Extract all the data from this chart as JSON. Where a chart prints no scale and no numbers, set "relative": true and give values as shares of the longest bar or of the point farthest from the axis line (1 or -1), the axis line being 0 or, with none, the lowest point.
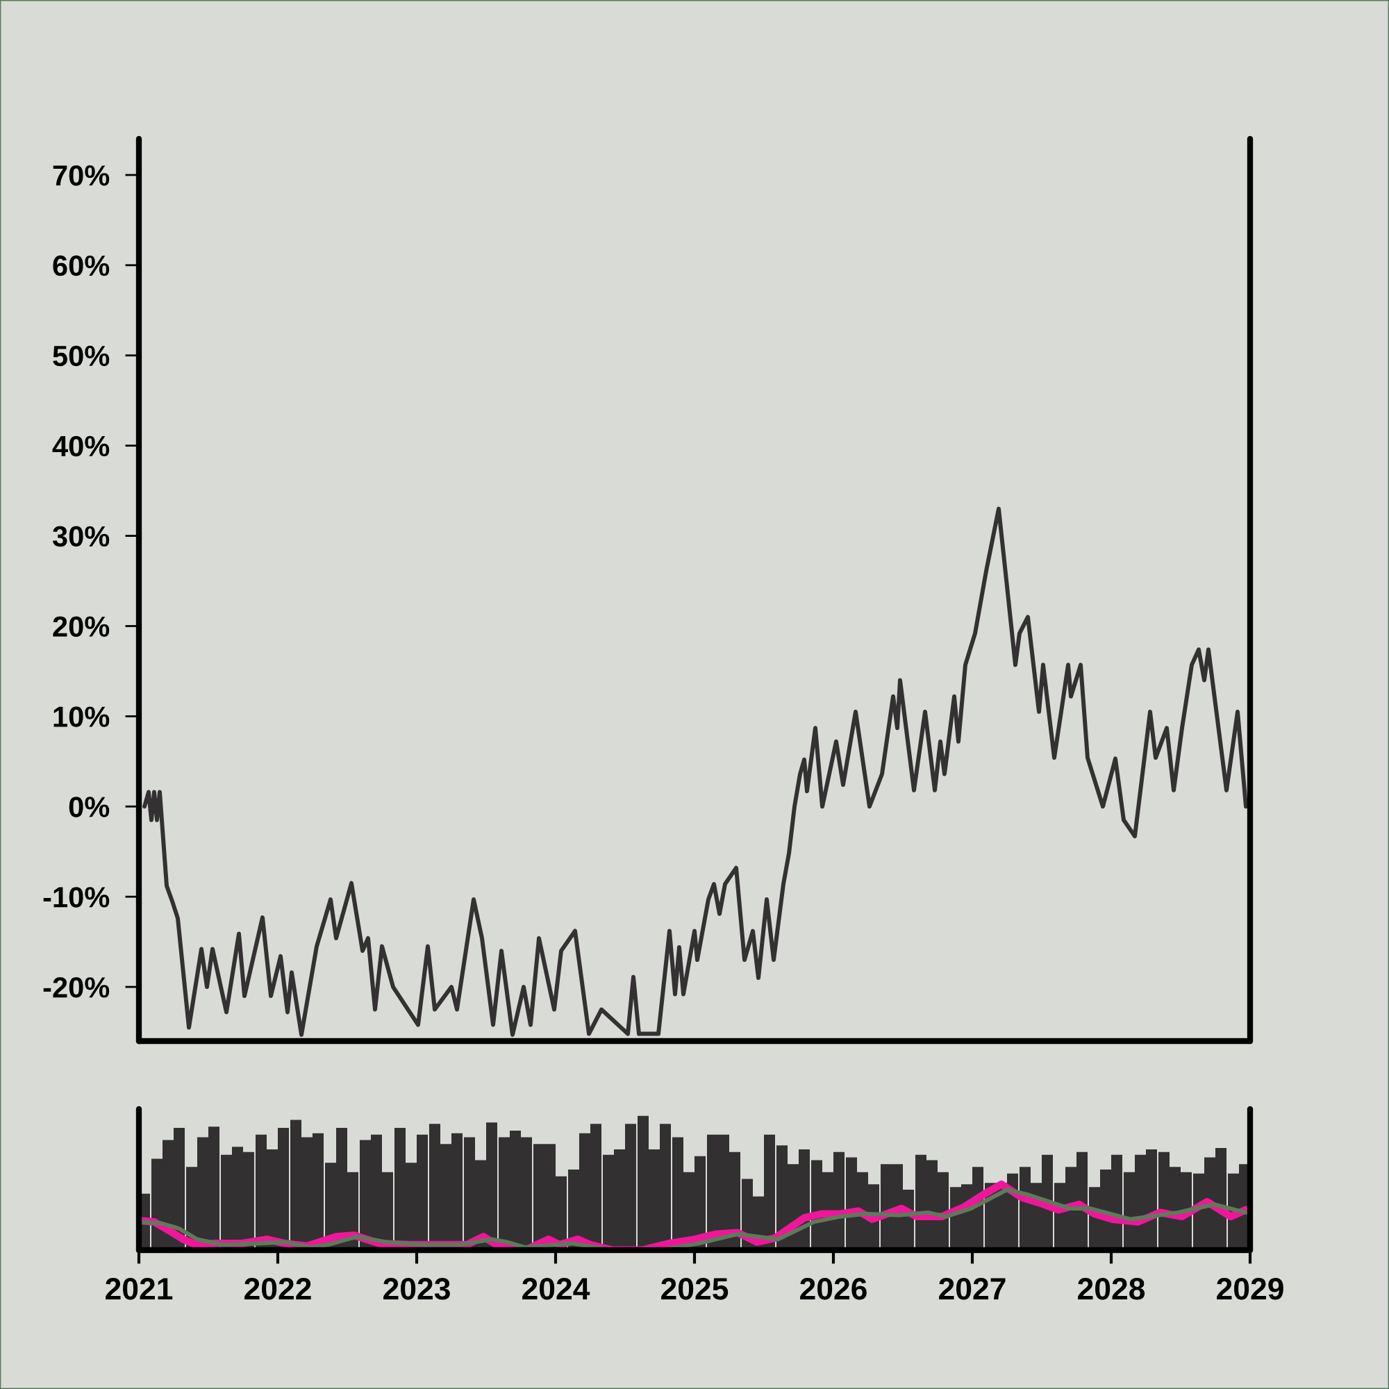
{
  "chart_data": [
    {
      "type": "line",
      "x": [
        2021.04,
        2021.07,
        2021.09,
        2021.11,
        2021.13,
        2021.15,
        2021.2,
        2021.24,
        2021.28,
        2021.36,
        2021.45,
        2021.49,
        2021.53,
        2021.63,
        2021.72,
        2021.76,
        2021.89,
        2021.95,
        2022.02,
        2022.07,
        2022.1,
        2022.17,
        2022.28,
        2022.38,
        2022.42,
        2022.53,
        2022.61,
        2022.65,
        2022.7,
        2022.75,
        2022.83,
        2023.01,
        2023.08,
        2023.13,
        2023.25,
        2023.29,
        2023.41,
        2023.47,
        2023.55,
        2023.61,
        2023.69,
        2023.77,
        2023.82,
        2023.88,
        2023.99,
        2024.04,
        2024.14,
        2024.24,
        2024.33,
        2024.52,
        2024.56,
        2024.6,
        2024.74,
        2024.82,
        2024.86,
        2024.89,
        2024.92,
        2025.0,
        2025.02,
        2025.1,
        2025.14,
        2025.18,
        2025.22,
        2025.3,
        2025.36,
        2025.42,
        2025.46,
        2025.52,
        2025.57,
        2025.64,
        2025.68,
        2025.72,
        2025.76,
        2025.79,
        2025.81,
        2025.87,
        2025.92,
        2026.02,
        2026.07,
        2026.16,
        2026.26,
        2026.35,
        2026.43,
        2026.46,
        2026.48,
        2026.58,
        2026.66,
        2026.73,
        2026.77,
        2026.8,
        2026.87,
        2026.9,
        2026.95,
        2027.02,
        2027.1,
        2027.19,
        2027.25,
        2027.31,
        2027.34,
        2027.4,
        2027.48,
        2027.51,
        2027.59,
        2027.64,
        2027.69,
        2027.71,
        2027.78,
        2027.83,
        2027.94,
        2028.03,
        2028.09,
        2028.17,
        2028.28,
        2028.32,
        2028.4,
        2028.45,
        2028.51,
        2028.58,
        2028.63,
        2028.67,
        2028.7,
        2028.8,
        2028.83,
        2028.91,
        2028.97
      ],
      "series": [
        {
          "color": "#333132",
          "values": [
            0,
            1.6,
            -1.5,
            1.6,
            -1.5,
            1.6,
            -8.8,
            -10.5,
            -12.4,
            -24.5,
            -15.8,
            -20,
            -15.8,
            -22.8,
            -14.1,
            -21,
            -12.3,
            -21,
            -16.6,
            -22.8,
            -18.4,
            -25.3,
            -15.5,
            -10.3,
            -14.6,
            -8.5,
            -16,
            -14.6,
            -22.5,
            -15.5,
            -20,
            -24.2,
            -15.5,
            -22.5,
            -20,
            -22.5,
            -10.3,
            -14.6,
            -24.2,
            -16,
            -25.3,
            -20,
            -24.2,
            -14.6,
            -22.5,
            -16,
            -13.8,
            -25.2,
            -22.5,
            -25.2,
            -18.9,
            -25.2,
            -25.2,
            -13.8,
            -20.8,
            -15.6,
            -20.8,
            -13.8,
            -17,
            -10.3,
            -8.6,
            -11.9,
            -8.6,
            -6.8,
            -17,
            -13.8,
            -19,
            -10.3,
            -17,
            -8.6,
            -5.2,
            0,
            3.6,
            5.2,
            1.7,
            8.7,
            0,
            7.2,
            2.4,
            10.5,
            0,
            3.6,
            12.2,
            8.7,
            14,
            1.8,
            10.5,
            1.8,
            7.2,
            3.6,
            12.2,
            7.2,
            15.7,
            19.2,
            26.1,
            33,
            24.4,
            15.7,
            19.2,
            21,
            10.5,
            15.7,
            5.4,
            10.5,
            15.7,
            12.2,
            15.7,
            5.4,
            0,
            5.3,
            -1.5,
            -3.3,
            10.5,
            5.4,
            8.7,
            1.8,
            8.7,
            15.7,
            17.4,
            14,
            17.4,
            5.4,
            1.8,
            10.5,
            0
          ]
        }
      ],
      "xlim": [
        2021,
        2029
      ],
      "ylim": [
        -26,
        74
      ],
      "yticks": [
        {
          "value": -20,
          "label": "-20%"
        },
        {
          "value": -10,
          "label": "-10%"
        },
        {
          "value": 0,
          "label": "0%"
        },
        {
          "value": 10,
          "label": "10%"
        },
        {
          "value": 20,
          "label": "20%"
        },
        {
          "value": 30,
          "label": "30%"
        },
        {
          "value": 40,
          "label": "40%"
        },
        {
          "value": 50,
          "label": "50%"
        },
        {
          "value": 60,
          "label": "60%"
        },
        {
          "value": 70,
          "label": "70%"
        }
      ],
      "tick_labels": "y",
      "grid": false,
      "legend": false
    },
    {
      "type": "bar",
      "relative": true,
      "xlim": [
        2021,
        2029
      ],
      "xticks": [
        2021,
        2022,
        2023,
        2024,
        2025,
        2026,
        2027,
        2028,
        2029
      ],
      "tick_labels": "x",
      "grid": false,
      "legend": false,
      "x": [
        2021.04,
        2021.13,
        2021.21,
        2021.29,
        2021.38,
        2021.46,
        2021.54,
        2021.63,
        2021.71,
        2021.79,
        2021.88,
        2021.96,
        2022.04,
        2022.13,
        2022.21,
        2022.29,
        2022.38,
        2022.46,
        2022.54,
        2022.63,
        2022.71,
        2022.79,
        2022.88,
        2022.96,
        2023.04,
        2023.13,
        2023.21,
        2023.29,
        2023.38,
        2023.46,
        2023.54,
        2023.63,
        2023.71,
        2023.79,
        2023.88,
        2023.96,
        2024.04,
        2024.13,
        2024.21,
        2024.29,
        2024.38,
        2024.46,
        2024.54,
        2024.63,
        2024.71,
        2024.79,
        2024.88,
        2024.96,
        2025.04,
        2025.13,
        2025.21,
        2025.29,
        2025.38,
        2025.46,
        2025.54,
        2025.63,
        2025.71,
        2025.79,
        2025.88,
        2025.96,
        2026.04,
        2026.13,
        2026.21,
        2026.29,
        2026.38,
        2026.46,
        2026.54,
        2026.63,
        2026.71,
        2026.79,
        2026.88,
        2026.96,
        2027.04,
        2027.13,
        2027.21,
        2027.29,
        2027.38,
        2027.46,
        2027.54,
        2027.63,
        2027.71,
        2027.79,
        2027.88,
        2027.96,
        2028.04,
        2028.13,
        2028.21,
        2028.29,
        2028.38,
        2028.46,
        2028.54,
        2028.63,
        2028.71,
        2028.79,
        2028.88,
        2028.96
      ],
      "series": [
        {
          "color": "#323031",
          "values": [
            0.42,
            0.68,
            0.82,
            0.91,
            0.62,
            0.84,
            0.92,
            0.71,
            0.77,
            0.73,
            0.86,
            0.75,
            0.91,
            0.97,
            0.84,
            0.87,
            0.65,
            0.91,
            0.58,
            0.82,
            0.86,
            0.58,
            0.91,
            0.65,
            0.86,
            0.94,
            0.79,
            0.87,
            0.84,
            0.67,
            0.95,
            0.84,
            0.89,
            0.84,
            0.79,
            0.79,
            0.55,
            0.6,
            0.87,
            0.94,
            0.71,
            0.75,
            0.94,
            1.0,
            0.75,
            0.94,
            0.84,
            0.58,
            0.7,
            0.86,
            0.86,
            0.73,
            0.53,
            0.4,
            0.86,
            0.78,
            0.64,
            0.75,
            0.67,
            0.58,
            0.73,
            0.69,
            0.58,
            0.49,
            0.64,
            0.64,
            0.45,
            0.71,
            0.67,
            0.58,
            0.47,
            0.49,
            0.62,
            0.5,
            0.5,
            0.57,
            0.62,
            0.5,
            0.71,
            0.5,
            0.62,
            0.73,
            0.47,
            0.6,
            0.71,
            0.58,
            0.71,
            0.75,
            0.73,
            0.62,
            0.58,
            0.57,
            0.69,
            0.76,
            0.57,
            0.64
          ]
        },
        {
          "type": "line",
          "color": "#f0169a",
          "x": [
            2021.0,
            2021.11,
            2021.21,
            2021.32,
            2021.41,
            2021.55,
            2021.74,
            2021.92,
            2022.05,
            2022.21,
            2022.42,
            2022.55,
            2022.73,
            2022.94,
            2023.18,
            2023.36,
            2023.48,
            2023.59,
            2023.78,
            2023.95,
            2024.03,
            2024.16,
            2024.25,
            2024.41,
            2024.62,
            2024.82,
            2025.0,
            2025.16,
            2025.31,
            2025.45,
            2025.58,
            2025.79,
            2025.92,
            2026.05,
            2026.18,
            2026.28,
            2026.49,
            2026.6,
            2026.78,
            2026.94,
            2027.09,
            2027.21,
            2027.36,
            2027.49,
            2027.62,
            2027.77,
            2027.88,
            2028.01,
            2028.19,
            2028.35,
            2028.51,
            2028.69,
            2028.86,
            2028.97
          ],
          "values": [
            0.22,
            0.21,
            0.15,
            0.08,
            0.04,
            0.05,
            0.05,
            0.08,
            0.05,
            0.03,
            0.1,
            0.11,
            0.05,
            0.04,
            0.04,
            0.04,
            0.1,
            0.03,
            0,
            0.08,
            0.04,
            0.08,
            0.04,
            0,
            0,
            0.05,
            0.08,
            0.12,
            0.13,
            0.06,
            0.09,
            0.24,
            0.27,
            0.27,
            0.29,
            0.23,
            0.31,
            0.25,
            0.25,
            0.32,
            0.42,
            0.49,
            0.39,
            0.35,
            0.3,
            0.34,
            0.27,
            0.23,
            0.21,
            0.28,
            0.25,
            0.36,
            0.25,
            0.3
          ]
        },
        {
          "type": "line",
          "color": "#5e7a5a",
          "x": [
            2021.0,
            2021.16,
            2021.29,
            2021.42,
            2021.6,
            2021.87,
            2022.05,
            2022.23,
            2022.36,
            2022.57,
            2022.78,
            2023.04,
            2023.31,
            2023.54,
            2023.65,
            2023.78,
            2024.12,
            2024.41,
            2024.75,
            2025.03,
            2025.31,
            2025.6,
            2025.86,
            2026.05,
            2026.23,
            2026.47,
            2026.68,
            2026.81,
            2026.99,
            2027.25,
            2027.41,
            2027.7,
            2027.85,
            2028.14,
            2028.48,
            2028.74,
            2028.97
          ],
          "values": [
            0.21,
            0.2,
            0.16,
            0.08,
            0.04,
            0.05,
            0.06,
            0.02,
            0.04,
            0.1,
            0.06,
            0.04,
            0.04,
            0.08,
            0.06,
            0.02,
            0.05,
            0,
            0,
            0.05,
            0.12,
            0.08,
            0.21,
            0.25,
            0.27,
            0.26,
            0.28,
            0.25,
            0.31,
            0.45,
            0.41,
            0.31,
            0.31,
            0.23,
            0.28,
            0.34,
            0.28
          ]
        }
      ]
    }
  ]
}
